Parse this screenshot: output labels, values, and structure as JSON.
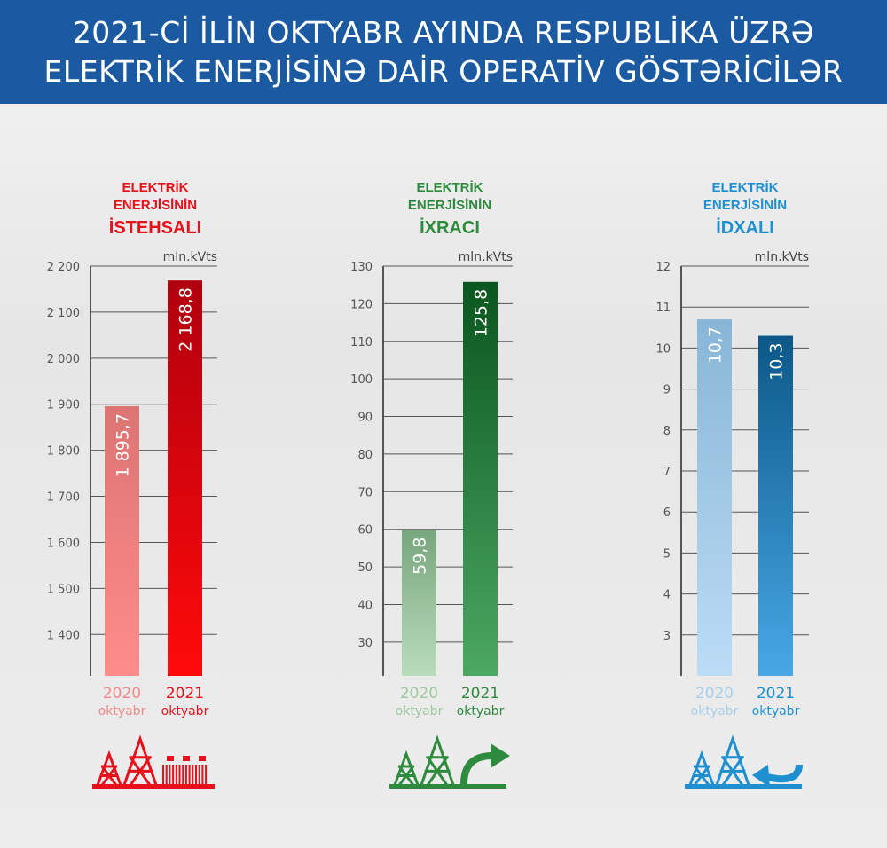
{
  "title": {
    "line1": "2021-Cİ İLİN OKTYABR AYINDA RESPUBLİKA ÜZRƏ",
    "line2": "ELEKTRİK ENERJİSİNƏ DAİR OPERATİV GÖSTƏRİCİLƏR"
  },
  "chart_data": [
    {
      "type": "bar",
      "title": [
        "ELEKTRİK",
        "ENERJİSİNİN",
        "İSTEHSALI"
      ],
      "unit": "mln.kVts",
      "categories": [
        [
          "2020",
          "oktyabr"
        ],
        [
          "2021",
          "oktyabr"
        ]
      ],
      "values": [
        1895.7,
        2168.8
      ],
      "value_labels": [
        "1 895,7",
        "2 168,8"
      ],
      "yticks": [
        1400,
        1500,
        1600,
        1700,
        1800,
        1900,
        2000,
        2100,
        2200
      ],
      "ytick_labels": [
        "1 400",
        "1 500",
        "1 600",
        "1 700",
        "1 800",
        "1 900",
        "2 000",
        "2 100",
        "2 200"
      ],
      "ylim": [
        1310,
        2200
      ],
      "grid": true,
      "title_color": "#e8101a",
      "icon": "power-plant-icon",
      "colors": [
        [
          "#dd7474",
          "#ff8c8c"
        ],
        [
          "#b0000e",
          "#ff0a0a"
        ]
      ],
      "label_colors": [
        "#f08a8a",
        "#e8101a"
      ]
    },
    {
      "type": "bar",
      "title": [
        "ELEKTRİK",
        "ENERJİSİNİN",
        "İXRACI"
      ],
      "unit": "mln.kVts",
      "categories": [
        [
          "2020",
          "oktyabr"
        ],
        [
          "2021",
          "oktyabr"
        ]
      ],
      "values": [
        59.8,
        125.8
      ],
      "value_labels": [
        "59,8",
        "125,8"
      ],
      "yticks": [
        30,
        40,
        50,
        60,
        70,
        80,
        90,
        100,
        110,
        120,
        130
      ],
      "ytick_labels": [
        "30",
        "40",
        "50",
        "60",
        "70",
        "80",
        "90",
        "100",
        "110",
        "120",
        "130"
      ],
      "ylim": [
        21,
        130
      ],
      "grid": true,
      "title_color": "#2e8b3e",
      "icon": "export-arrow-icon",
      "colors": [
        [
          "#78a67e",
          "#b9dcbb"
        ],
        [
          "#0a5620",
          "#4ca862"
        ]
      ],
      "label_colors": [
        "#9cc8a0",
        "#2e8b3e"
      ]
    },
    {
      "type": "bar",
      "title": [
        "ELEKTRİK",
        "ENERJİSİNİN",
        "İDXALI"
      ],
      "unit": "mln.kVts",
      "categories": [
        [
          "2020",
          "oktyabr"
        ],
        [
          "2021",
          "oktyabr"
        ]
      ],
      "values": [
        10.7,
        10.3
      ],
      "value_labels": [
        "10,7",
        "10,3"
      ],
      "yticks": [
        3,
        4,
        5,
        6,
        7,
        8,
        9,
        10,
        11,
        12
      ],
      "ytick_labels": [
        "3",
        "4",
        "5",
        "6",
        "7",
        "8",
        "9",
        "10",
        "11",
        "12"
      ],
      "ylim": [
        2,
        12
      ],
      "grid": true,
      "title_color": "#1e90d0",
      "icon": "import-arrow-icon",
      "colors": [
        [
          "#88b6d6",
          "#bcdcf6"
        ],
        [
          "#0b5888",
          "#48a8e6"
        ]
      ],
      "label_colors": [
        "#a8cfea",
        "#1e90d0"
      ]
    }
  ]
}
